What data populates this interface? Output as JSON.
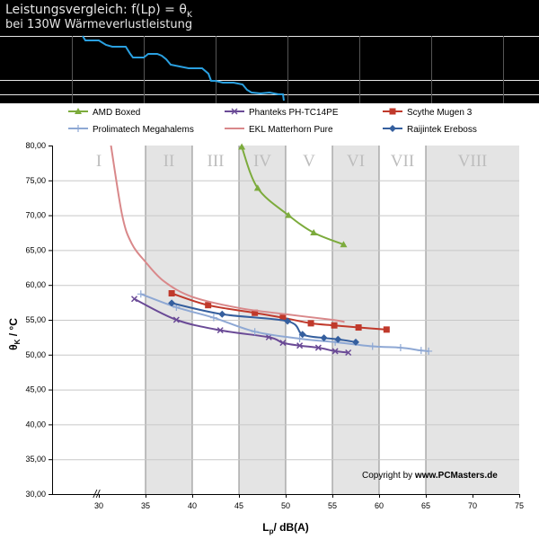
{
  "header": {
    "title_prefix": "Leistungsvergleich: f(Lp) = θ",
    "title_sub": "K",
    "subtitle": "bei 130W Wärmeverlustleistung"
  },
  "copyright": {
    "prefix": "Copyright by ",
    "site": "www.PCMasters.de"
  },
  "chart_data": {
    "type": "line",
    "xlabel_main": "L",
    "xlabel_sub": "p",
    "xlabel_rest": "/ dB(A)",
    "ylabel_main": "θ",
    "ylabel_sub": "K",
    "ylabel_rest": " / °C",
    "xlim": [
      25,
      75
    ],
    "ylim": [
      30,
      80
    ],
    "x_ticks": [
      30,
      35,
      40,
      45,
      50,
      55,
      60,
      65,
      70,
      75
    ],
    "y_ticks": [
      "30,00",
      "35,00",
      "40,00",
      "45,00",
      "50,00",
      "55,00",
      "60,00",
      "65,00",
      "70,00",
      "75,00",
      "80,00"
    ],
    "axis_break": "//",
    "grid": true,
    "legend_position": "top",
    "zones": [
      {
        "label": "I",
        "x0": 25,
        "x1": 35,
        "shaded": false
      },
      {
        "label": "II",
        "x0": 35,
        "x1": 40,
        "shaded": true
      },
      {
        "label": "III",
        "x0": 40,
        "x1": 45,
        "shaded": false
      },
      {
        "label": "IV",
        "x0": 45,
        "x1": 50,
        "shaded": true
      },
      {
        "label": "V",
        "x0": 50,
        "x1": 55,
        "shaded": false
      },
      {
        "label": "VI",
        "x0": 55,
        "x1": 60,
        "shaded": true
      },
      {
        "label": "VII",
        "x0": 60,
        "x1": 65,
        "shaded": false
      },
      {
        "label": "VIII",
        "x0": 65,
        "x1": 75,
        "shaded": true
      }
    ],
    "series": [
      {
        "name": "AMD Boxed",
        "color": "#7cab3c",
        "marker": "triangle",
        "points": [
          [
            45.3,
            79.8
          ],
          [
            47.0,
            73.9
          ],
          [
            50.3,
            70.0
          ],
          [
            53.0,
            67.5
          ],
          [
            56.2,
            65.8
          ]
        ]
      },
      {
        "name": "Phanteks PH-TC14PE",
        "color": "#6a4a96",
        "marker": "x",
        "points": [
          [
            33.8,
            58.0
          ],
          [
            38.3,
            55.0
          ],
          [
            43.0,
            53.5
          ],
          [
            48.2,
            52.5
          ],
          [
            49.7,
            51.7
          ],
          [
            51.5,
            51.3
          ],
          [
            53.5,
            51.0
          ],
          [
            55.3,
            50.5
          ],
          [
            56.7,
            50.3
          ]
        ]
      },
      {
        "name": "Scythe Mugen 3",
        "color": "#c0392b",
        "marker": "square",
        "points": [
          [
            37.8,
            58.8
          ],
          [
            41.7,
            57.1
          ],
          [
            46.7,
            56.0
          ],
          [
            49.7,
            55.3
          ],
          [
            52.7,
            54.5
          ],
          [
            55.2,
            54.2
          ],
          [
            57.8,
            53.9
          ],
          [
            60.8,
            53.6
          ]
        ]
      },
      {
        "name": "Prolimatech Megahalems",
        "color": "#8ea8d4",
        "marker": "plus",
        "points": [
          [
            34.5,
            58.7
          ],
          [
            38.3,
            56.8
          ],
          [
            42.3,
            55.3
          ],
          [
            46.7,
            53.3
          ],
          [
            51.5,
            52.3
          ],
          [
            55.3,
            51.8
          ],
          [
            59.3,
            51.2
          ],
          [
            62.3,
            51.0
          ],
          [
            64.5,
            50.6
          ],
          [
            65.3,
            50.5
          ]
        ]
      },
      {
        "name": "EKL Matterhorn Pure",
        "color": "#d9888a",
        "marker": "none",
        "points": [
          [
            31.3,
            80.0
          ],
          [
            32.5,
            70.0
          ],
          [
            33.5,
            66.0
          ],
          [
            35.0,
            63.3
          ],
          [
            37.0,
            60.5
          ],
          [
            40.0,
            58.3
          ],
          [
            45.0,
            56.7
          ],
          [
            50.0,
            55.8
          ],
          [
            55.0,
            55.0
          ],
          [
            56.3,
            54.7
          ]
        ]
      },
      {
        "name": "Raijintek Ereboss",
        "color": "#355f9e",
        "marker": "diamond",
        "points": [
          [
            37.8,
            57.4
          ],
          [
            43.2,
            55.8
          ],
          [
            50.2,
            54.8
          ],
          [
            51.8,
            52.9
          ],
          [
            54.1,
            52.4
          ],
          [
            55.6,
            52.2
          ],
          [
            57.5,
            51.8
          ]
        ]
      }
    ]
  }
}
